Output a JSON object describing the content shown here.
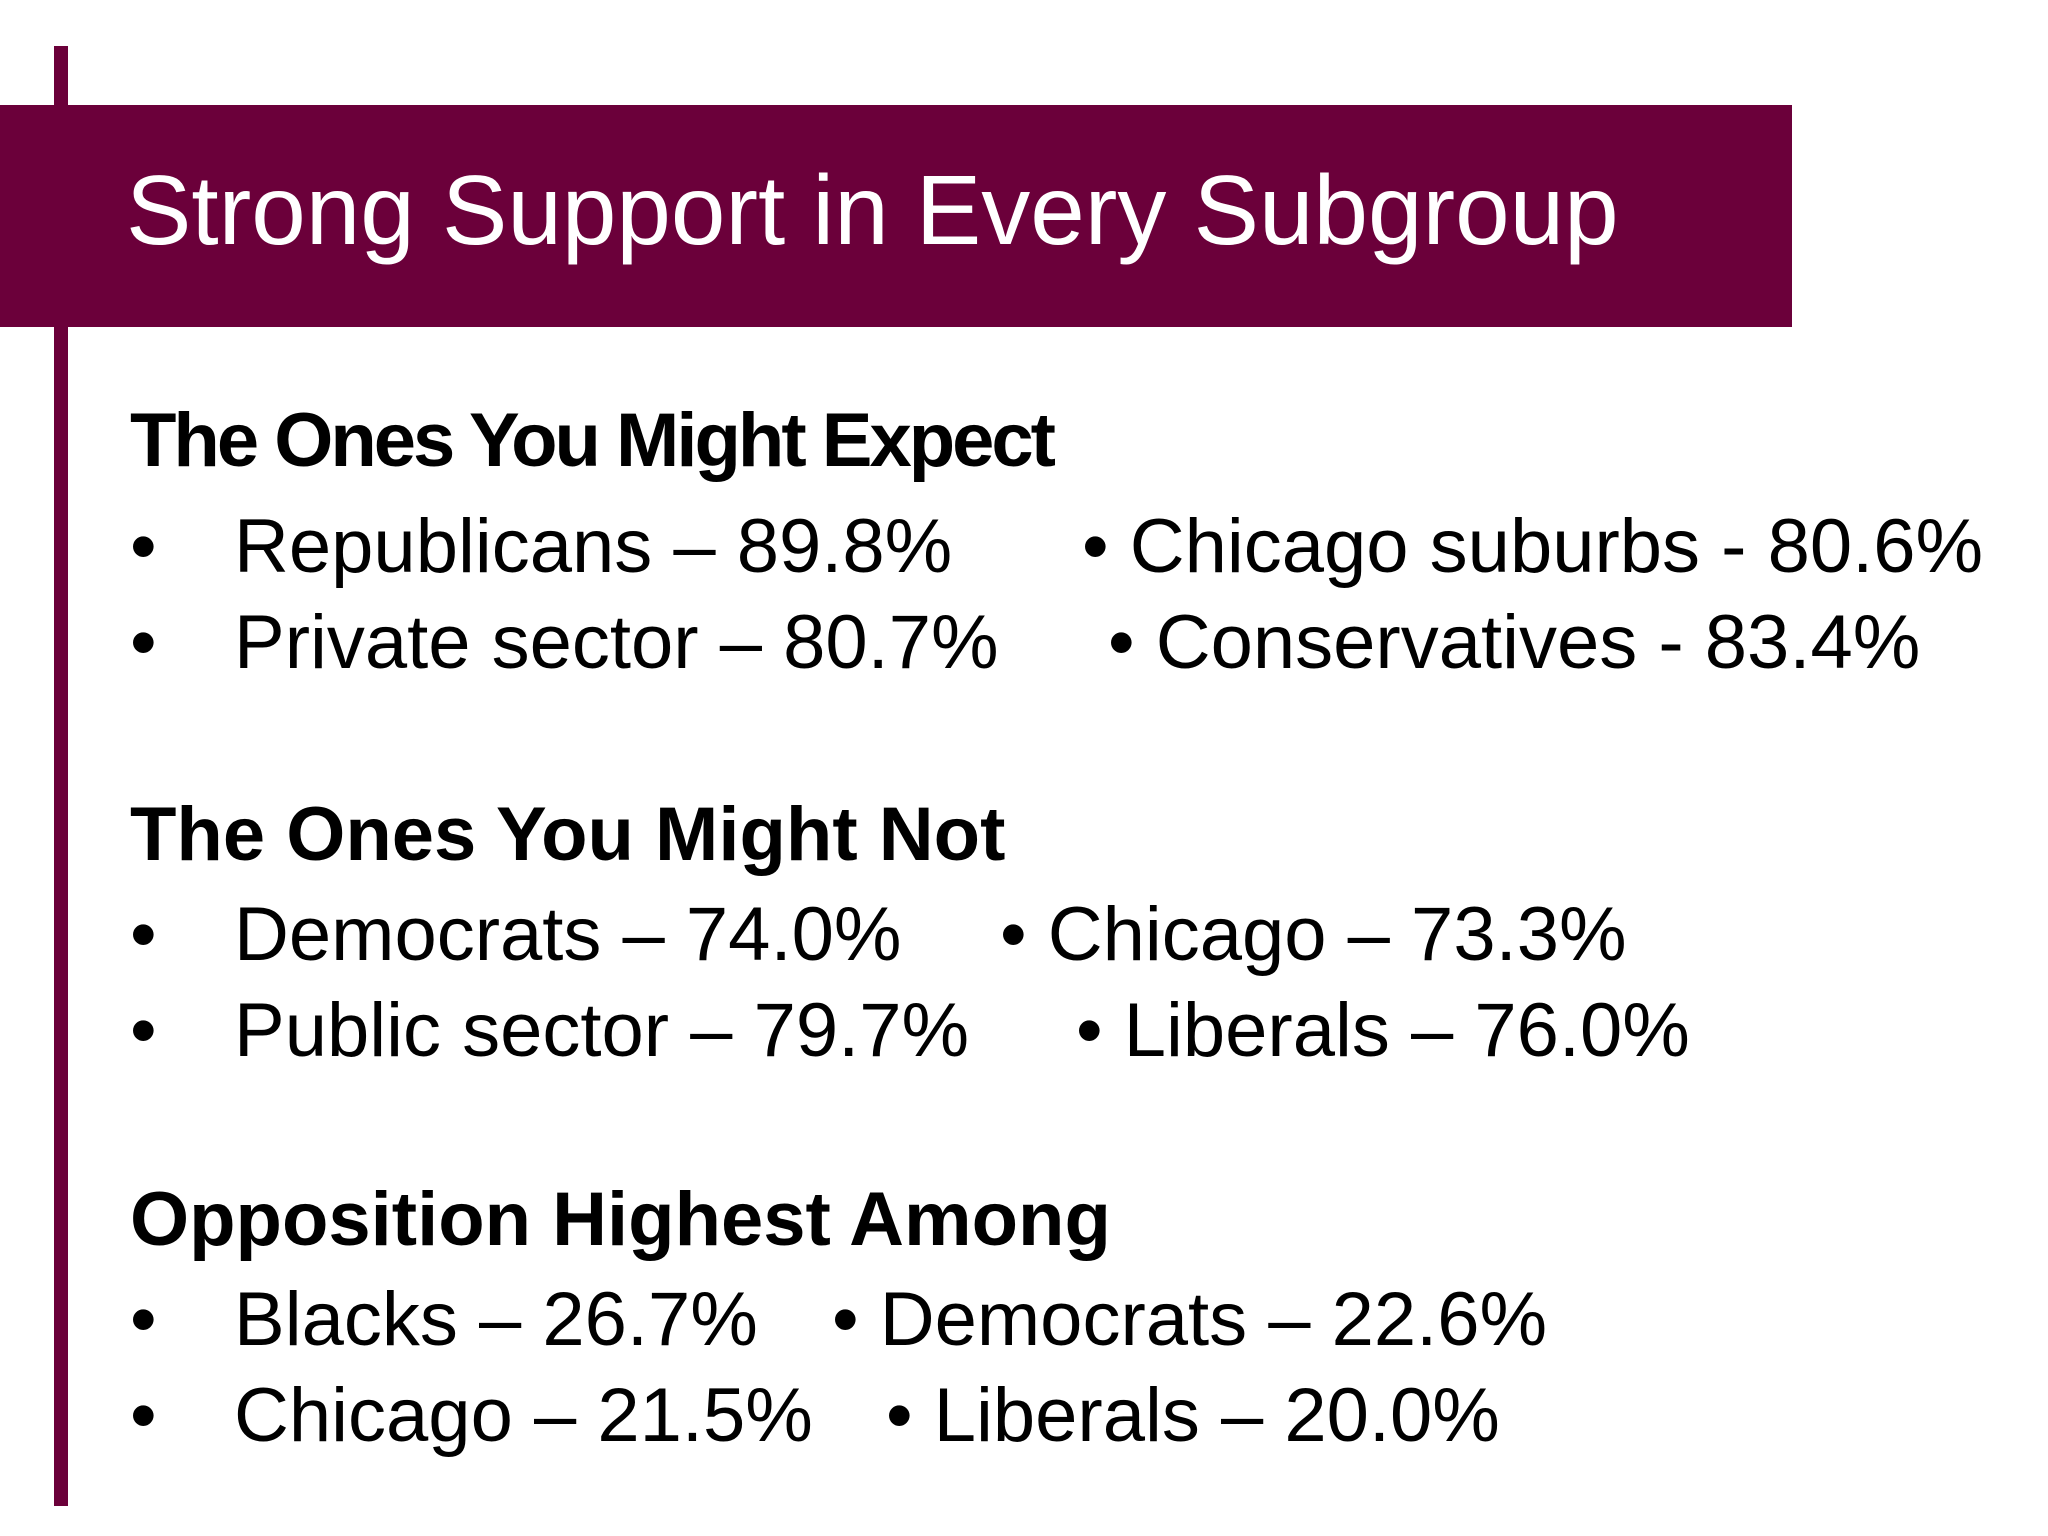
{
  "title": "Strong Support in Every Subgroup",
  "bullet_glyph": "•",
  "sections": [
    {
      "heading": "The Ones You Might Expect",
      "rows": [
        {
          "left": "Republicans – 89.8%",
          "right": "• Chicago suburbs - 80.6%"
        },
        {
          "left": "Private sector – 80.7%",
          "right": "• Conservatives - 83.4%"
        }
      ]
    },
    {
      "heading": "The Ones You Might Not",
      "rows": [
        {
          "left": "Democrats – 74.0%",
          "right": "• Chicago – 73.3%"
        },
        {
          "left": "Public sector – 79.7%",
          "right": "• Liberals – 76.0%"
        }
      ]
    },
    {
      "heading": "Opposition Highest Among",
      "rows": [
        {
          "left": "Blacks – 26.7%",
          "right": "• Democrats – 22.6%"
        },
        {
          "left": "Chicago – 21.5%",
          "right": "• Liberals – 20.0%"
        }
      ]
    }
  ],
  "colors": {
    "accent": "#6b003a",
    "title_text": "#ffffff",
    "body_text": "#000000",
    "background": "#ffffff"
  }
}
